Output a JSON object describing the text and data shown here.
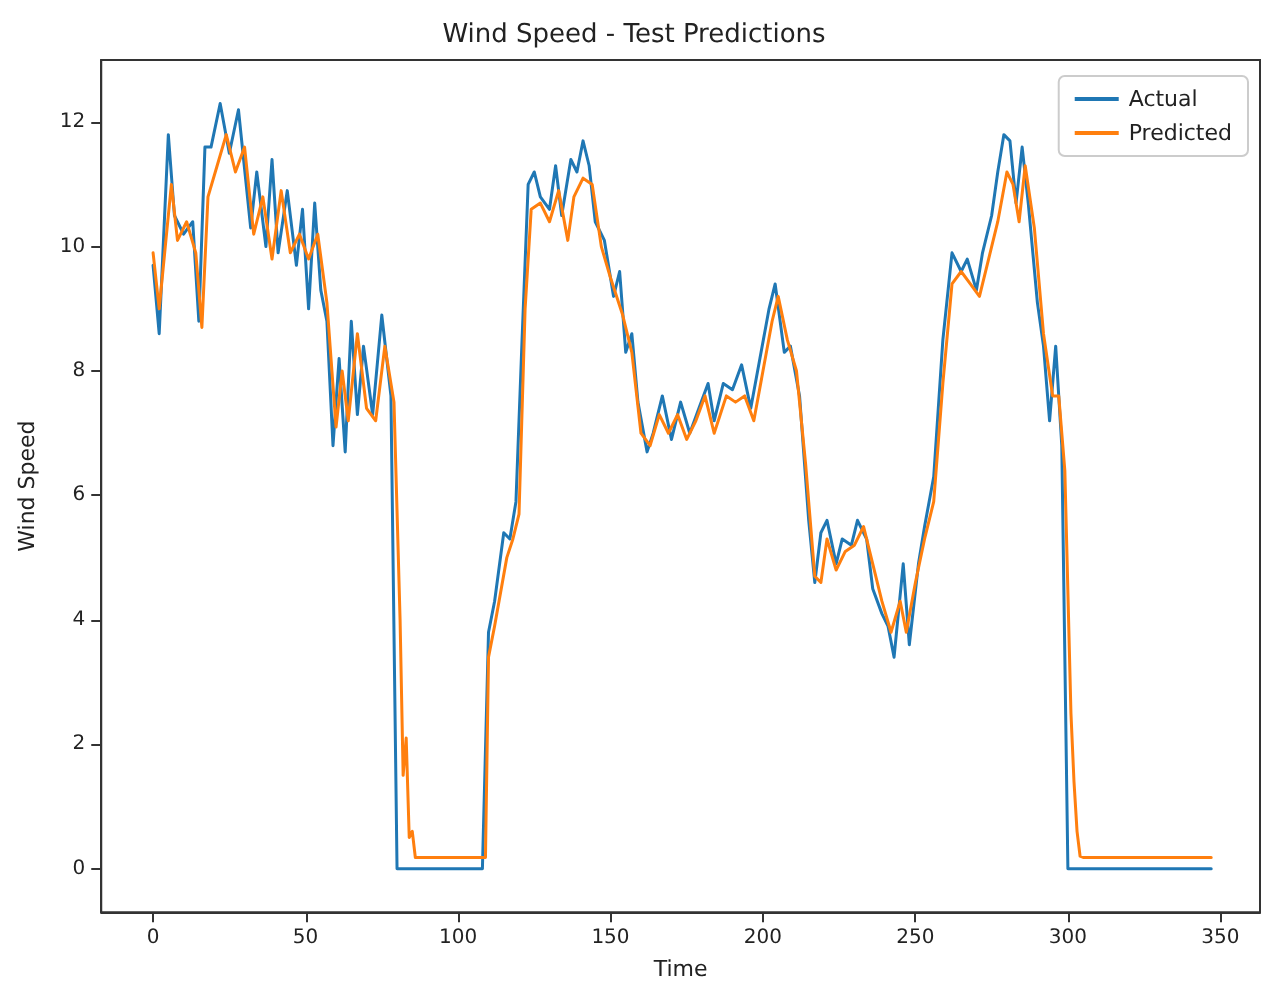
{
  "chart_data": {
    "type": "line",
    "title": "Wind Speed - Test Predictions",
    "xlabel": "Time",
    "ylabel": "Wind Speed",
    "xlim": [
      -17,
      363
    ],
    "xticks": [
      0,
      50,
      100,
      150,
      200,
      250,
      300,
      350
    ],
    "ylim": [
      -0.7,
      13
    ],
    "yticks": [
      0,
      2,
      4,
      6,
      8,
      10,
      12
    ],
    "grid": false,
    "legend": "top right",
    "marker": "none",
    "line_style": "solid",
    "series": [
      {
        "name": "Actual",
        "color": "#1f77b4",
        "x": [
          0,
          2,
          5,
          7,
          10,
          13,
          15,
          17,
          19,
          22,
          25,
          28,
          32,
          34,
          37,
          39,
          41,
          44,
          47,
          49,
          51,
          53,
          55,
          57,
          59,
          61,
          63,
          65,
          67,
          69,
          72,
          75,
          78,
          80,
          108,
          110,
          112,
          115,
          117,
          119,
          121,
          123,
          125,
          127,
          130,
          132,
          134,
          137,
          139,
          141,
          143,
          145,
          148,
          151,
          153,
          155,
          157,
          159,
          162,
          164,
          167,
          170,
          173,
          176,
          179,
          182,
          184,
          187,
          190,
          193,
          196,
          199,
          202,
          204,
          207,
          209,
          212,
          215,
          217,
          219,
          221,
          224,
          226,
          229,
          231,
          234,
          236,
          239,
          241,
          243,
          246,
          248,
          251,
          253,
          256,
          259,
          262,
          265,
          267,
          270,
          272,
          275,
          277,
          279,
          281,
          283,
          285,
          287,
          290,
          292,
          294,
          296,
          298,
          300,
          347
        ],
        "values": [
          9.7,
          8.6,
          11.8,
          10.5,
          10.2,
          10.4,
          8.8,
          11.6,
          11.6,
          12.3,
          11.5,
          12.2,
          10.3,
          11.2,
          10.0,
          11.4,
          9.9,
          10.9,
          9.7,
          10.6,
          9.0,
          10.7,
          9.3,
          8.8,
          6.8,
          8.2,
          6.7,
          8.8,
          7.3,
          8.4,
          7.3,
          8.9,
          7.6,
          0,
          0,
          3.8,
          4.3,
          5.4,
          5.3,
          5.9,
          8.5,
          11.0,
          11.2,
          10.8,
          10.6,
          11.3,
          10.5,
          11.4,
          11.2,
          11.7,
          11.3,
          10.4,
          10.1,
          9.2,
          9.6,
          8.3,
          8.6,
          7.5,
          6.7,
          7.0,
          7.6,
          6.9,
          7.5,
          7.0,
          7.4,
          7.8,
          7.2,
          7.8,
          7.7,
          8.1,
          7.4,
          8.2,
          9.0,
          9.4,
          8.3,
          8.4,
          7.6,
          5.6,
          4.6,
          5.4,
          5.6,
          4.9,
          5.3,
          5.2,
          5.6,
          5.3,
          4.5,
          4.1,
          3.9,
          3.4,
          4.9,
          3.6,
          4.9,
          5.5,
          6.3,
          8.5,
          9.9,
          9.6,
          9.8,
          9.3,
          9.9,
          10.5,
          11.2,
          11.8,
          11.7,
          10.7,
          11.6,
          10.7,
          9.1,
          8.4,
          7.2,
          8.4,
          6.8,
          0,
          0
        ]
      },
      {
        "name": "Predicted",
        "color": "#ff7f0e",
        "x": [
          0,
          2,
          6,
          8,
          11,
          14,
          16,
          18,
          21,
          24,
          27,
          30,
          33,
          36,
          39,
          42,
          45,
          48,
          51,
          54,
          57,
          60,
          62,
          64,
          67,
          70,
          73,
          76,
          79,
          81,
          82,
          83,
          84,
          85,
          86,
          109,
          110,
          112,
          116,
          118,
          120,
          122,
          124,
          127,
          130,
          133,
          136,
          138,
          141,
          144,
          147,
          150,
          154,
          157,
          160,
          163,
          166,
          169,
          172,
          175,
          178,
          181,
          184,
          188,
          191,
          194,
          197,
          200,
          203,
          205,
          208,
          211,
          214,
          217,
          219,
          221,
          224,
          227,
          230,
          233,
          236,
          239,
          242,
          245,
          247,
          250,
          253,
          256,
          259,
          262,
          265,
          268,
          271,
          274,
          277,
          280,
          282,
          284,
          286,
          289,
          292,
          295,
          297,
          299,
          301,
          302,
          303,
          304,
          305,
          347
        ],
        "values": [
          9.9,
          9.0,
          11.0,
          10.1,
          10.4,
          9.9,
          8.7,
          10.8,
          11.3,
          11.8,
          11.2,
          11.6,
          10.2,
          10.8,
          9.8,
          10.9,
          9.9,
          10.2,
          9.8,
          10.2,
          9.1,
          7.1,
          8.0,
          7.2,
          8.6,
          7.4,
          7.2,
          8.4,
          7.5,
          4.0,
          1.5,
          2.1,
          0.5,
          0.6,
          0.18,
          0.18,
          3.4,
          3.9,
          5.0,
          5.3,
          5.7,
          9.0,
          10.6,
          10.7,
          10.4,
          10.9,
          10.1,
          10.8,
          11.1,
          11.0,
          10.0,
          9.5,
          8.9,
          8.3,
          7.0,
          6.8,
          7.3,
          7.0,
          7.3,
          6.9,
          7.2,
          7.6,
          7.0,
          7.6,
          7.5,
          7.6,
          7.2,
          8.0,
          8.8,
          9.2,
          8.5,
          8.0,
          6.5,
          4.7,
          4.6,
          5.3,
          4.8,
          5.1,
          5.2,
          5.5,
          4.9,
          4.3,
          3.8,
          4.3,
          3.8,
          4.6,
          5.3,
          5.9,
          7.8,
          9.4,
          9.6,
          9.4,
          9.2,
          9.8,
          10.4,
          11.2,
          11.0,
          10.4,
          11.3,
          10.3,
          8.6,
          7.6,
          7.6,
          6.4,
          2.5,
          1.4,
          0.6,
          0.2,
          0.18,
          0.18
        ]
      }
    ]
  }
}
